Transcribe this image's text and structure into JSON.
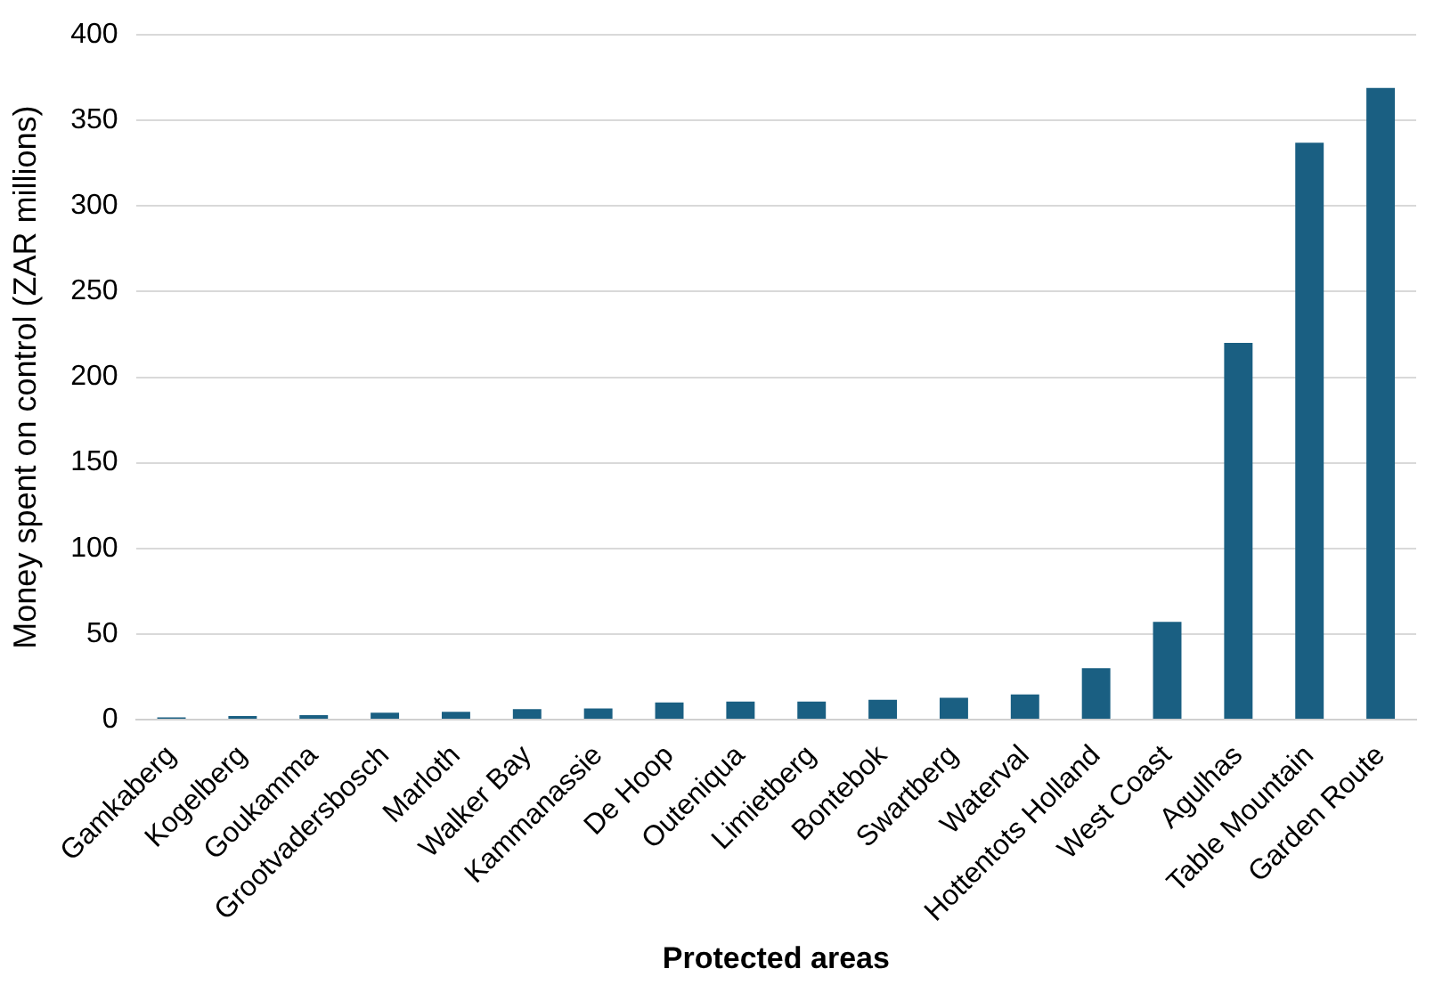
{
  "chart_data": {
    "type": "bar",
    "xlabel": "Protected areas",
    "ylabel": "Money spent on control (ZAR millions)",
    "categories": [
      "Gamkaberg",
      "Kogelberg",
      "Goukamma",
      "Grootvadersbosch",
      "Marloth",
      "Walker Bay",
      "Kammanassie",
      "De Hoop",
      "Outeniqua",
      "Limietberg",
      "Bontebok",
      "Swartberg",
      "Waterval",
      "Hottentots Holland",
      "West Coast",
      "Agulhas",
      "Table Mountain",
      "Garden Route"
    ],
    "values": [
      1.2,
      2,
      2.5,
      4,
      4.5,
      6,
      6.5,
      10,
      10.5,
      10.5,
      11.5,
      12.7,
      14.7,
      30,
      57,
      220,
      337,
      369
    ],
    "color": "#1a5f82",
    "ylim": [
      0,
      400
    ],
    "yticks": [
      0,
      50,
      100,
      150,
      200,
      250,
      300,
      350,
      400
    ],
    "grid": "y",
    "legend": false
  }
}
